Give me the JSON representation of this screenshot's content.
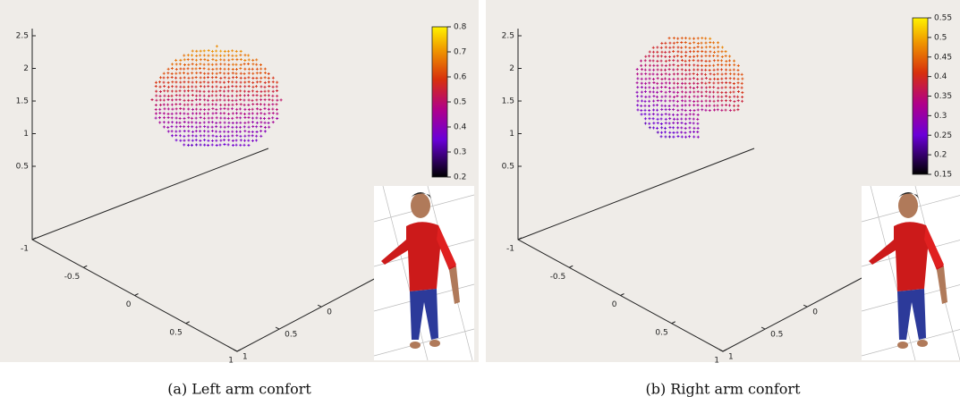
{
  "panels": [
    {
      "z_ticks": [
        "2.5",
        "2",
        "1.5",
        "1",
        "0.5"
      ],
      "x_ticks": [
        "-1",
        "-0.5",
        "0",
        "0.5",
        "1"
      ],
      "y_ticks": [
        "1",
        "0.5",
        "0"
      ],
      "colorbar_ticks": [
        "0.8",
        "0.7",
        "0.6",
        "0.5",
        "0.4",
        "0.3",
        "0.2"
      ],
      "caption": "(a) Left arm confort"
    },
    {
      "z_ticks": [
        "2.5",
        "2",
        "1.5",
        "1",
        "0.5"
      ],
      "x_ticks": [
        "-1",
        "-0.5",
        "0",
        "0.5",
        "1"
      ],
      "y_ticks": [
        "1",
        "0.5",
        "0"
      ],
      "colorbar_ticks": [
        "0.55",
        "0.5",
        "0.45",
        "0.4",
        "0.35",
        "0.3",
        "0.25",
        "0.2",
        "0.15"
      ],
      "caption": "(b) Right arm confort"
    }
  ]
}
